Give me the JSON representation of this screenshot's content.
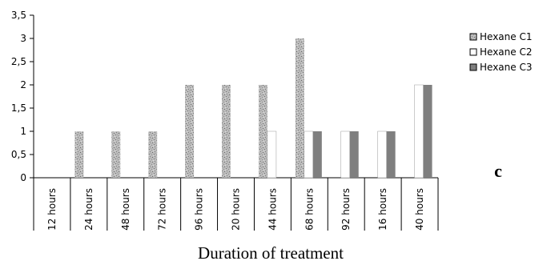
{
  "chart_data": {
    "type": "bar",
    "xlabel": "Duration of treatment",
    "ylabel": "",
    "ylim": [
      0,
      3.5
    ],
    "yticks": [
      "0",
      "0,5",
      "1",
      "1,5",
      "2",
      "2,5",
      "3",
      "3,5"
    ],
    "grid": false,
    "legend_position": "right",
    "annotation": "c",
    "categories": [
      "12 hours",
      "24 hours",
      "48 hours",
      "72 hours",
      "96 hours",
      "20 hours",
      "44 hours",
      "68 hours",
      "92 hours",
      "16 hours",
      "40 hours"
    ],
    "series": [
      {
        "name": "Hexane C1",
        "values": [
          0,
          1,
          1,
          1,
          2,
          2,
          2,
          3,
          0,
          0,
          0
        ],
        "color": "#b4b4b4",
        "pattern": "speckled"
      },
      {
        "name": "Hexane C2",
        "values": [
          0,
          0,
          0,
          0,
          0,
          0,
          1,
          1,
          1,
          1,
          2
        ],
        "color": "#ffffff"
      },
      {
        "name": "Hexane C3",
        "values": [
          0,
          0,
          0,
          0,
          0,
          0,
          0,
          1,
          1,
          1,
          2
        ],
        "color": "#7f7f7f"
      }
    ]
  }
}
